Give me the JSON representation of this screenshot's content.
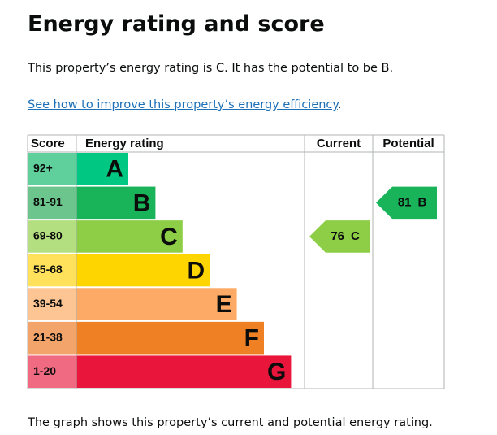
{
  "header": {
    "title": "Energy rating and score"
  },
  "summary": "This property’s energy rating is C. It has the potential to be B.",
  "link": {
    "text": "See how to improve this property’s energy efficiency",
    "after": "."
  },
  "table": {
    "columns": [
      "Score",
      "Energy rating",
      "Current",
      "Potential"
    ],
    "bands": [
      {
        "score": "92+",
        "rating": "A",
        "color": "#00c781",
        "score_color": "#5fcf9c"
      },
      {
        "score": "81-91",
        "rating": "B",
        "color": "#19b459",
        "score_color": "#6cc58c"
      },
      {
        "score": "69-80",
        "rating": "C",
        "color": "#8dce46",
        "score_color": "#b3df80"
      },
      {
        "score": "55-68",
        "rating": "D",
        "color": "#ffd500",
        "score_color": "#ffe15c"
      },
      {
        "score": "39-54",
        "rating": "E",
        "color": "#fcaa65",
        "score_color": "#fdc593"
      },
      {
        "score": "21-38",
        "rating": "F",
        "color": "#ef8023",
        "score_color": "#f3a46a"
      },
      {
        "score": "1-20",
        "rating": "G",
        "color": "#e9153b",
        "score_color": "#f06a82"
      }
    ],
    "current": {
      "score": 76,
      "rating": "C"
    },
    "potential": {
      "score": 81,
      "rating": "B"
    }
  },
  "footer": "The graph shows this property’s current and potential energy rating."
}
